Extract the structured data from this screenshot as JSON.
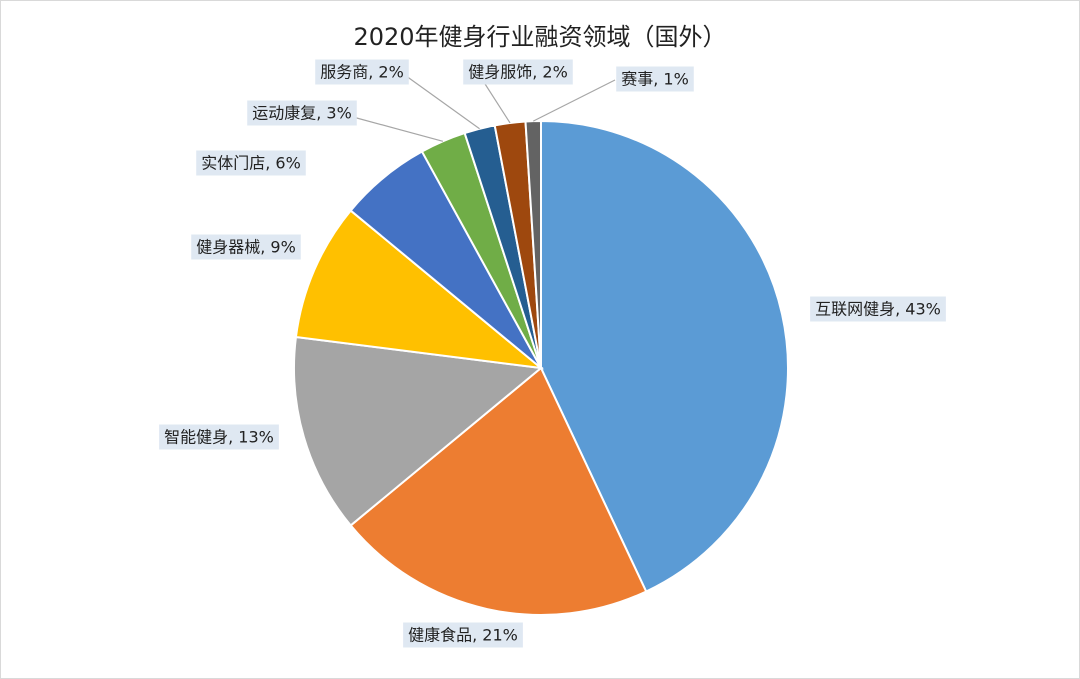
{
  "chart_data": {
    "type": "pie",
    "title": "2020年健身行业融资领域（国外）",
    "values": [
      43,
      21,
      13,
      9,
      6,
      3,
      2,
      2,
      1
    ],
    "value_labels": [
      "互联网健身, 43%",
      "健康食品, 21%",
      "智能健身, 13%",
      "健身器械, 9%",
      "实体门店, 6%",
      "运动康复, 3%",
      "服务商, 2%",
      "健身服饰, 2%",
      "赛事, 1%"
    ],
    "colors": [
      "#5b9bd5",
      "#ed7d31",
      "#a5a5a5",
      "#ffc000",
      "#4472c4",
      "#70ad47",
      "#255e91",
      "#9e480e",
      "#636363"
    ]
  }
}
